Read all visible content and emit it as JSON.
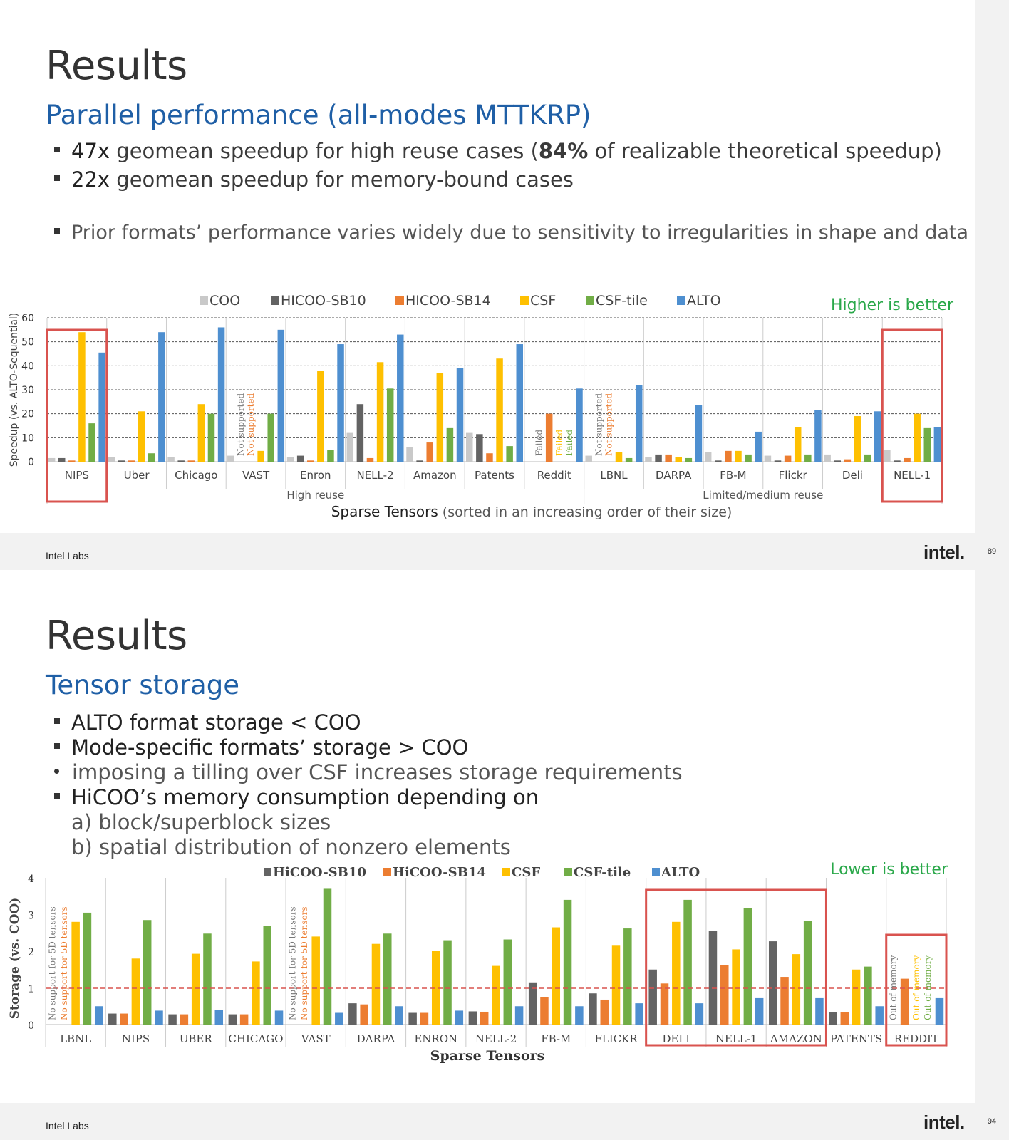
{
  "slides": [
    {
      "title": "Results",
      "subtitle": "Parallel performance (all-modes MTTKRP)",
      "bullets": [
        {
          "strong": "47x",
          "text": " geomean speedup for high reuse cases (",
          "strong2": "84%",
          "text2": " of realizable theoretical speedup)"
        },
        {
          "strong": "22x",
          "text": " geomean speedup for memory-bound cases"
        },
        {
          "text": "Prior formats’ performance varies widely due to sensitivity to irregularities in shape and data"
        }
      ],
      "footer": {
        "lab": "Intel Labs",
        "logo": "intel.",
        "page": "89"
      }
    },
    {
      "title": "Results",
      "subtitle": "Tensor storage",
      "bullets": [
        {
          "text": "ALTO format storage < COO"
        },
        {
          "text": "Mode-specific formats’ storage > COO"
        },
        {
          "text": "imposing a tilling over CSF increases storage requirements"
        },
        {
          "text": "HiCOO’s memory consumption depending on"
        }
      ],
      "sub_items": [
        "a)  block/superblock sizes",
        "b)  spatial distribution of nonzero elements"
      ],
      "footer": {
        "lab": "Intel Labs",
        "logo": "intel.",
        "page": "94"
      }
    }
  ],
  "chart_data": [
    {
      "type": "bar",
      "title": "",
      "note": "Higher is better",
      "xlabel_strong": "Sparse Tensors",
      "xlabel_rest": " (sorted in an increasing order of their size)",
      "ylabel": "Speedup (vs. ALTO-Sequential)",
      "ylim": [
        0,
        60
      ],
      "yticks": [
        0,
        10,
        20,
        30,
        40,
        50,
        60
      ],
      "groups": [
        {
          "label": "High reuse",
          "count": 9
        },
        {
          "label": "Limited/medium reuse",
          "count": 6
        }
      ],
      "categories": [
        "NIPS",
        "Uber",
        "Chicago",
        "VAST",
        "Enron",
        "NELL-2",
        "Amazon",
        "Patents",
        "Reddit",
        "LBNL",
        "DARPA",
        "FB-M",
        "Flickr",
        "Deli",
        "NELL-1"
      ],
      "highlight": [
        "NIPS",
        "NELL-1"
      ],
      "series": [
        {
          "name": "COO",
          "color": "#c9c9c9",
          "values": [
            1.5,
            2,
            2,
            2.5,
            2,
            12,
            6,
            12,
            0,
            2.5,
            2,
            4,
            2.5,
            3,
            5
          ]
        },
        {
          "name": "HICOO-SB10",
          "color": "#636363",
          "values": [
            1.5,
            0.5,
            0.5,
            null,
            2.5,
            24,
            0.5,
            11.5,
            null,
            null,
            3,
            0.5,
            0.5,
            0.5,
            0.5
          ]
        },
        {
          "name": "HICOO-SB14",
          "color": "#ec7d31",
          "values": [
            0.5,
            0.5,
            0.5,
            null,
            0.5,
            1.5,
            8,
            3.5,
            20,
            null,
            3,
            4.5,
            2.5,
            1,
            1.5
          ]
        },
        {
          "name": "CSF",
          "color": "#fec001",
          "values": [
            54,
            21,
            24,
            4.5,
            38,
            41.5,
            37,
            43,
            null,
            4,
            2,
            4.5,
            14.5,
            19,
            20
          ]
        },
        {
          "name": "CSF-tile",
          "color": "#71ad46",
          "values": [
            16,
            3.5,
            20,
            20,
            5,
            30.5,
            14,
            6.5,
            null,
            1.5,
            1.5,
            3,
            3,
            3,
            14
          ]
        },
        {
          "name": "ALTO",
          "color": "#4e8fd0",
          "values": [
            45.5,
            54,
            56,
            55,
            49,
            53,
            39,
            49,
            30.5,
            32,
            23.5,
            12.5,
            21.5,
            21,
            14.5
          ]
        }
      ],
      "annotations": [
        {
          "category": "VAST",
          "series": "HICOO-SB10",
          "text": "Not supported",
          "color": "#777"
        },
        {
          "category": "VAST",
          "series": "HICOO-SB14",
          "text": "Not supported",
          "color": "#ec7d31"
        },
        {
          "category": "Reddit",
          "series": "HICOO-SB10",
          "text": "Failed",
          "color": "#777"
        },
        {
          "category": "Reddit",
          "series": "CSF",
          "text": "Failed",
          "color": "#fec001"
        },
        {
          "category": "Reddit",
          "series": "CSF-tile",
          "text": "Failed",
          "color": "#71ad46"
        },
        {
          "category": "LBNL",
          "series": "HICOO-SB10",
          "text": "Not supported",
          "color": "#777"
        },
        {
          "category": "LBNL",
          "series": "HICOO-SB14",
          "text": "Not supported",
          "color": "#ec7d31"
        }
      ]
    },
    {
      "type": "bar",
      "note": "Lower is better",
      "xlabel": "Sparse Tensors",
      "ylabel": "Storage (vs. COO)",
      "ylim": [
        0,
        4
      ],
      "yticks": [
        0,
        1,
        2,
        3,
        4
      ],
      "reference_line": 1,
      "categories": [
        "LBNL",
        "NIPS",
        "UBER",
        "CHICAGO",
        "VAST",
        "DARPA",
        "ENRON",
        "NELL-2",
        "FB-M",
        "FLICKR",
        "DELI",
        "NELL-1",
        "AMAZON",
        "PATENTS",
        "REDDIT"
      ],
      "highlight_groups": [
        [
          "DELI",
          "NELL-1",
          "AMAZON"
        ],
        [
          "REDDIT"
        ]
      ],
      "series": [
        {
          "name": "HiCOO-SB10",
          "color": "#636363",
          "values": [
            null,
            0.3,
            0.28,
            0.28,
            null,
            0.58,
            0.32,
            0.36,
            1.15,
            0.85,
            1.5,
            2.55,
            2.27,
            0.33,
            null
          ]
        },
        {
          "name": "HiCOO-SB14",
          "color": "#ec7d31",
          "values": [
            null,
            0.3,
            0.28,
            0.28,
            null,
            0.55,
            0.32,
            0.35,
            0.75,
            0.68,
            1.12,
            1.63,
            1.3,
            0.33,
            1.25
          ]
        },
        {
          "name": "CSF",
          "color": "#fec001",
          "values": [
            2.8,
            1.8,
            1.93,
            1.72,
            2.4,
            2.2,
            2.0,
            1.6,
            2.65,
            2.15,
            2.8,
            2.05,
            1.92,
            1.5,
            null
          ]
        },
        {
          "name": "CSF-tile",
          "color": "#71ad46",
          "values": [
            3.05,
            2.85,
            2.48,
            2.68,
            3.7,
            2.48,
            2.28,
            2.32,
            3.4,
            2.62,
            3.4,
            3.18,
            2.82,
            1.58,
            null
          ]
        },
        {
          "name": "ALTO",
          "color": "#4e8fd0",
          "values": [
            0.5,
            0.38,
            0.4,
            0.38,
            0.32,
            0.5,
            0.38,
            0.5,
            0.5,
            0.58,
            0.58,
            0.72,
            0.72,
            0.5,
            0.72
          ]
        }
      ],
      "annotations": [
        {
          "category": "LBNL",
          "series": "HiCOO-SB10",
          "text": "No support for 5D tensors",
          "color": "#777"
        },
        {
          "category": "LBNL",
          "series": "HiCOO-SB14",
          "text": "No support for 5D tensors",
          "color": "#ec7d31"
        },
        {
          "category": "VAST",
          "series": "HiCOO-SB10",
          "text": "No support for 5D tensors",
          "color": "#777"
        },
        {
          "category": "VAST",
          "series": "HiCOO-SB14",
          "text": "No support for 5D tensors",
          "color": "#ec7d31"
        },
        {
          "category": "REDDIT",
          "series": "HiCOO-SB10",
          "text": "Out of memory",
          "color": "#777"
        },
        {
          "category": "REDDIT",
          "series": "CSF",
          "text": "Out of memory",
          "color": "#fec001"
        },
        {
          "category": "REDDIT",
          "series": "CSF-tile",
          "text": "Out of memory",
          "color": "#71ad46"
        }
      ]
    }
  ]
}
